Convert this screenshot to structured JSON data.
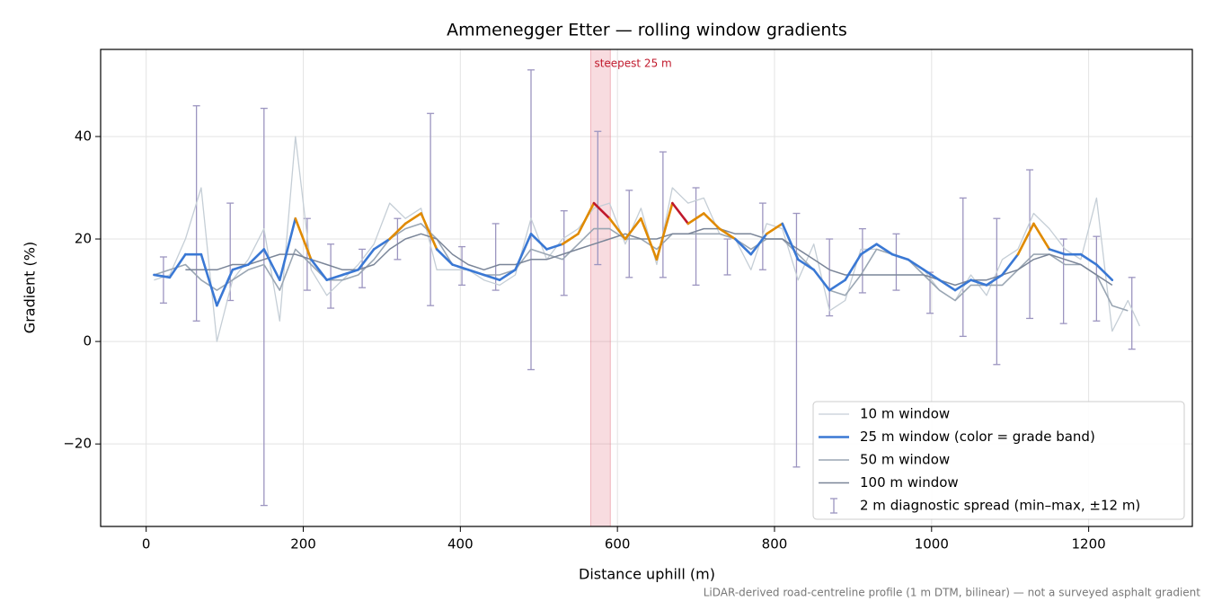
{
  "chart_data": {
    "type": "line",
    "title": "Ammenegger Etter — rolling window gradients",
    "xlabel": "Distance uphill (m)",
    "ylabel": "Gradient (%)",
    "footnote": "LiDAR-derived road-centreline profile (1 m DTM, bilinear) — not a surveyed asphalt gradient",
    "xlim": [
      -58,
      1332
    ],
    "ylim": [
      -36.1,
      57
    ],
    "xticks": [
      0,
      200,
      400,
      600,
      800,
      1000,
      1200
    ],
    "yticks": [
      {
        "value": -20,
        "label": "−20"
      },
      0,
      20,
      40
    ],
    "grid": true,
    "legend": "lower right",
    "x": [
      10,
      30,
      50,
      70,
      90,
      110,
      130,
      150,
      170,
      190,
      210,
      230,
      250,
      270,
      290,
      310,
      330,
      350,
      370,
      390,
      410,
      430,
      450,
      470,
      490,
      510,
      530,
      550,
      570,
      590,
      610,
      630,
      650,
      670,
      690,
      710,
      730,
      750,
      770,
      790,
      810,
      830,
      850,
      870,
      890,
      910,
      930,
      950,
      970,
      990,
      1010,
      1030,
      1050,
      1070,
      1090,
      1110,
      1130,
      1150,
      1170,
      1190,
      1210,
      1230,
      1250,
      1265
    ],
    "series": [
      {
        "name": "10 m window",
        "color": "#c5ced6",
        "width": 1.3,
        "values": [
          12,
          13,
          20,
          30,
          0,
          12,
          16,
          22,
          4,
          40,
          14,
          9,
          12,
          15,
          19,
          27,
          24,
          26,
          14,
          14,
          14,
          12,
          11,
          13,
          24,
          16,
          20,
          22,
          26,
          27,
          19,
          26,
          15,
          30,
          27,
          28,
          21,
          20,
          14,
          23,
          22,
          12,
          19,
          6,
          8,
          18,
          18,
          17,
          16,
          14,
          10,
          8,
          13,
          9,
          16,
          18,
          25,
          22,
          18,
          16,
          28,
          2,
          8,
          3
        ]
      },
      {
        "name": "25 m window (color = grade band)",
        "color": "#3a78d4",
        "width": 2.6,
        "grade_bands": [
          {
            "min": 20,
            "color": "#e08a00"
          },
          {
            "min": 25,
            "color": "#c0192c"
          }
        ],
        "values": [
          13,
          12.5,
          17,
          17,
          7,
          14,
          15,
          18,
          12,
          24,
          16,
          12,
          13,
          14,
          18,
          20,
          23,
          25,
          18,
          15,
          14,
          13,
          12,
          14,
          21,
          18,
          19,
          21,
          27,
          24,
          20,
          24,
          16,
          27,
          23,
          25,
          22,
          20,
          17,
          21,
          23,
          16,
          14,
          10,
          12,
          17,
          19,
          17,
          16,
          14,
          12,
          10,
          12,
          11,
          13,
          17,
          23,
          18,
          17,
          17,
          15,
          12,
          null,
          null
        ]
      },
      {
        "name": "50 m window",
        "color": "#9aa6b3",
        "width": 1.6,
        "values": [
          13,
          14,
          15,
          12,
          10,
          12,
          14,
          15,
          10,
          18,
          15,
          12,
          12,
          13,
          16,
          20,
          22,
          23,
          20,
          15,
          14,
          13,
          13,
          14,
          18,
          17,
          16,
          19,
          22,
          22,
          20,
          20,
          18,
          21,
          21,
          21,
          21,
          20,
          18,
          20,
          20,
          17,
          14,
          10,
          9,
          13,
          18,
          17,
          16,
          13,
          10,
          8,
          11,
          11,
          11,
          14,
          17,
          17,
          15,
          15,
          13,
          7,
          6,
          null
        ]
      },
      {
        "name": "100 m window",
        "color": "#7a8598",
        "width": 1.5,
        "values": [
          null,
          null,
          14,
          14,
          14,
          15,
          15,
          16,
          17,
          17,
          16,
          15,
          14,
          14,
          15,
          18,
          20,
          21,
          20,
          17,
          15,
          14,
          15,
          15,
          16,
          16,
          17,
          18,
          19,
          20,
          21,
          20,
          20,
          21,
          21,
          22,
          22,
          21,
          21,
          20,
          20,
          18,
          16,
          14,
          13,
          13,
          13,
          13,
          13,
          13,
          12,
          11,
          12,
          12,
          13,
          14,
          16,
          17,
          16,
          15,
          13,
          11,
          null,
          null
        ]
      }
    ],
    "spread": {
      "name": "2 m diagnostic spread (min–max, ±12 m)",
      "color": "#9c95c0",
      "x": [
        22,
        64,
        107,
        150,
        205,
        235,
        275,
        320,
        362,
        402,
        445,
        490,
        532,
        575,
        615,
        658,
        700,
        740,
        785,
        828,
        870,
        912,
        955,
        998,
        1040,
        1083,
        1125,
        1168,
        1210,
        1255
      ],
      "low": [
        7.5,
        4,
        8,
        -32,
        10,
        6.5,
        10.5,
        16,
        7,
        11,
        10,
        -5.5,
        9,
        15,
        12.5,
        12.5,
        11,
        13,
        14,
        -24.5,
        5,
        9.5,
        10,
        5.5,
        1,
        -4.5,
        4.5,
        3.5,
        4,
        -1.5
      ],
      "high": [
        16.5,
        46,
        27,
        45.5,
        24,
        19,
        18,
        24,
        44.5,
        18.5,
        23,
        53,
        25.5,
        41,
        29.5,
        37,
        30,
        20,
        27,
        25,
        20,
        22,
        21,
        13.5,
        28,
        24,
        33.5,
        20,
        20.5,
        12.5
      ]
    },
    "highlight": {
      "label": "steepest 25 m",
      "xmin": 566,
      "xmax": 591,
      "color": "#e06070"
    }
  }
}
